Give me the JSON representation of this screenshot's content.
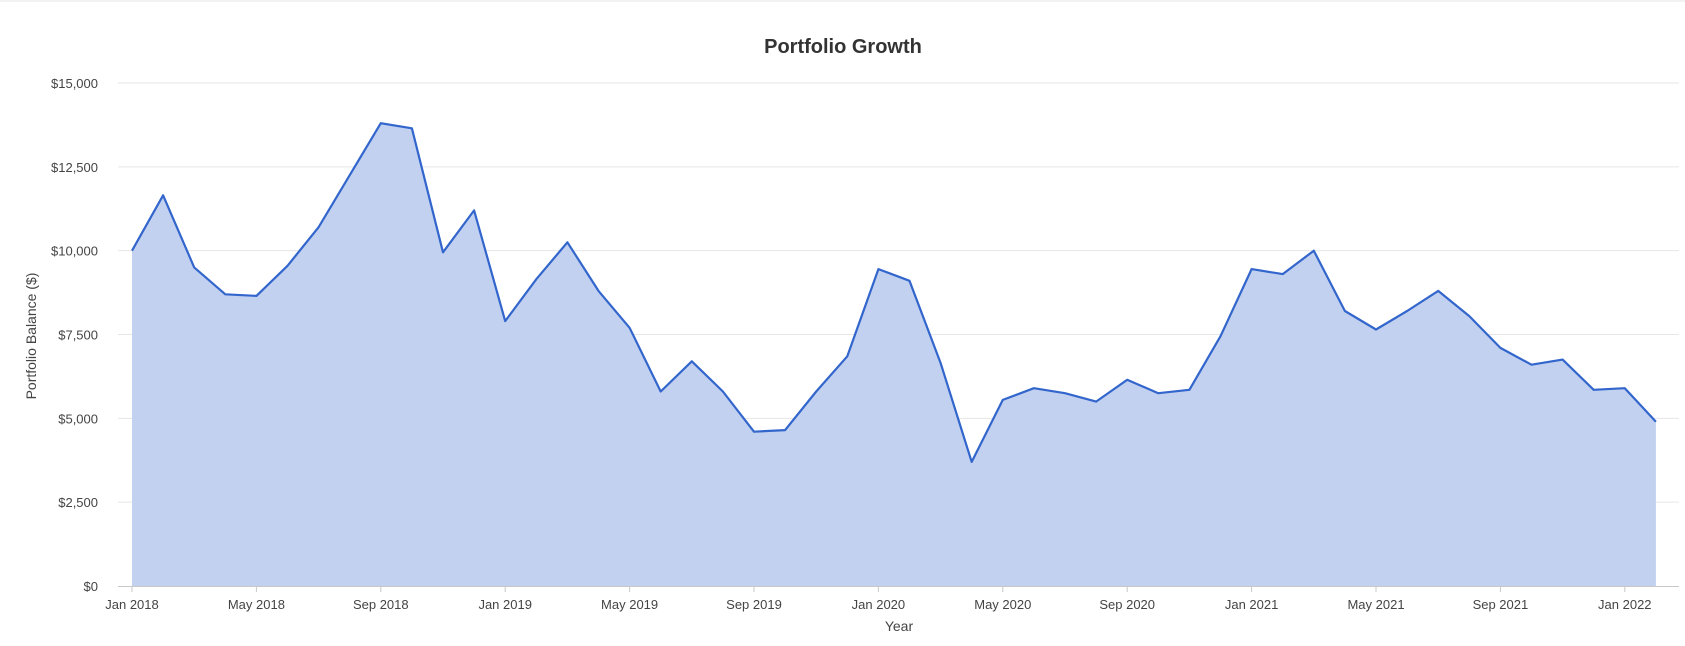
{
  "chart_data": {
    "type": "area",
    "title": "Portfolio Growth",
    "xlabel": "Year",
    "ylabel": "Portfolio Balance ($)",
    "ylim": [
      0,
      15000
    ],
    "y_ticks": [
      0,
      2500,
      5000,
      7500,
      10000,
      12500,
      15000
    ],
    "y_tick_labels": [
      "$0",
      "$2,500",
      "$5,000",
      "$7,500",
      "$10,000",
      "$12,500",
      "$15,000"
    ],
    "x_tick_labels": [
      "Jan 2018",
      "May 2018",
      "Sep 2018",
      "Jan 2019",
      "May 2019",
      "Sep 2019",
      "Jan 2020",
      "May 2020",
      "Sep 2020",
      "Jan 2021",
      "May 2021",
      "Sep 2021",
      "Jan 2022"
    ],
    "grid": true,
    "legend": "none",
    "colors": {
      "line": "#3366cc",
      "fill": "#c2d1f0",
      "grid": "#e6e6e6",
      "axis": "#c8c8c8"
    },
    "series": [
      {
        "x": [
          "2018-01",
          "2018-02",
          "2018-03",
          "2018-04",
          "2018-05",
          "2018-06",
          "2018-07",
          "2018-08",
          "2018-09",
          "2018-10",
          "2018-11",
          "2018-12",
          "2019-01",
          "2019-02",
          "2019-03",
          "2019-04",
          "2019-05",
          "2019-06",
          "2019-07",
          "2019-08",
          "2019-09",
          "2019-10",
          "2019-11",
          "2019-12",
          "2020-01",
          "2020-02",
          "2020-03",
          "2020-04",
          "2020-05",
          "2020-06",
          "2020-07",
          "2020-08",
          "2020-09",
          "2020-10",
          "2020-11",
          "2020-12",
          "2021-01",
          "2021-02",
          "2021-03",
          "2021-04",
          "2021-05",
          "2021-06",
          "2021-07",
          "2021-08",
          "2021-09",
          "2021-10",
          "2021-11",
          "2021-12",
          "2022-01",
          "2022-02"
        ],
        "values": [
          10000,
          11650,
          9500,
          8700,
          8650,
          9550,
          10700,
          12250,
          13800,
          13650,
          9950,
          11200,
          7900,
          9150,
          10250,
          8800,
          7700,
          5800,
          6700,
          5800,
          4600,
          4650,
          5800,
          6850,
          9450,
          9100,
          6650,
          3700,
          5550,
          5900,
          5750,
          5500,
          6150,
          5750,
          5850,
          7450,
          9450,
          9300,
          10000,
          8200,
          7650,
          8200,
          8800,
          8050,
          7100,
          6600,
          6750,
          5850,
          5900,
          4900
        ]
      }
    ]
  }
}
